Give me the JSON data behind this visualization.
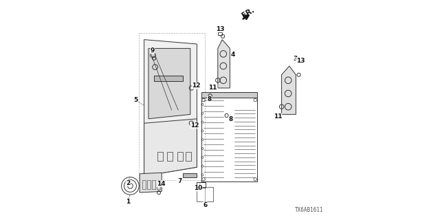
{
  "background_color": "#ffffff",
  "diagram_code": "TX6AB1611",
  "fr_arrow_text": "FR.",
  "line_color": "#333333",
  "label_fontsize": 6.5,
  "code_fontsize": 5.5
}
